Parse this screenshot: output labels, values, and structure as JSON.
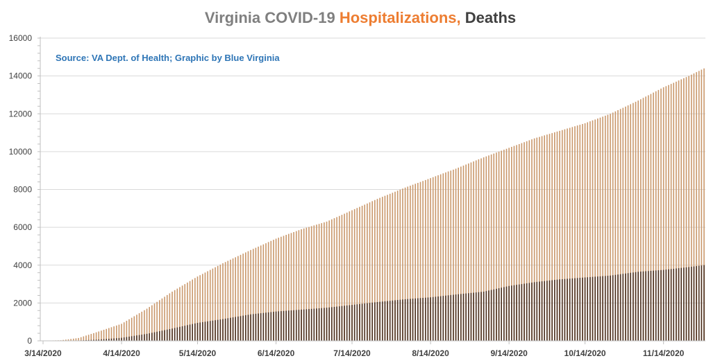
{
  "colors": {
    "title_gray": "#7f7f7f",
    "title_orange": "#ed7d31",
    "title_dark": "#404040",
    "hospitalizations": "#c9976a",
    "deaths": "#4a2f1f",
    "source": "#2e75b6",
    "grid": "#d9d9d9"
  },
  "chart_data": {
    "type": "bar",
    "title": {
      "part1": "Virginia COVID-19 ",
      "part2": "Hospitalizations,",
      "part3": " Deaths"
    },
    "annotation": "Source: VA Dept. of Health; Graphic by Blue Virginia",
    "ylim": [
      0,
      16000
    ],
    "yticks": [
      "0",
      "2000",
      "4000",
      "6000",
      "8000",
      "10000",
      "12000",
      "14000",
      "16000"
    ],
    "xtick_labels": [
      "3/14/2020",
      "4/14/2020",
      "5/14/2020",
      "6/14/2020",
      "7/14/2020",
      "8/14/2020",
      "9/14/2020",
      "10/14/2020",
      "11/14/2020"
    ],
    "start_date": "3/14/2020",
    "end_date": "11/30/2020",
    "stacked": false,
    "grid": true,
    "series": [
      {
        "name": "Hospitalizations",
        "keypoints": [
          [
            "3/14/2020",
            10
          ],
          [
            "3/21/2020",
            30
          ],
          [
            "3/28/2020",
            150
          ],
          [
            "4/4/2020",
            450
          ],
          [
            "4/14/2020",
            900
          ],
          [
            "4/24/2020",
            1700
          ],
          [
            "5/4/2020",
            2600
          ],
          [
            "5/14/2020",
            3400
          ],
          [
            "5/24/2020",
            4100
          ],
          [
            "6/4/2020",
            4800
          ],
          [
            "6/14/2020",
            5400
          ],
          [
            "6/24/2020",
            5900
          ],
          [
            "7/4/2020",
            6300
          ],
          [
            "7/14/2020",
            6900
          ],
          [
            "7/24/2020",
            7500
          ],
          [
            "8/4/2020",
            8100
          ],
          [
            "8/14/2020",
            8600
          ],
          [
            "8/24/2020",
            9100
          ],
          [
            "9/4/2020",
            9700
          ],
          [
            "9/14/2020",
            10200
          ],
          [
            "9/24/2020",
            10700
          ],
          [
            "10/4/2020",
            11100
          ],
          [
            "10/14/2020",
            11500
          ],
          [
            "10/24/2020",
            12000
          ],
          [
            "11/4/2020",
            12700
          ],
          [
            "11/14/2020",
            13400
          ],
          [
            "11/24/2020",
            14000
          ],
          [
            "11/30/2020",
            14400
          ]
        ]
      },
      {
        "name": "Deaths",
        "keypoints": [
          [
            "3/14/2020",
            0
          ],
          [
            "3/21/2020",
            5
          ],
          [
            "3/28/2020",
            20
          ],
          [
            "4/4/2020",
            60
          ],
          [
            "4/14/2020",
            160
          ],
          [
            "4/24/2020",
            370
          ],
          [
            "5/4/2020",
            650
          ],
          [
            "5/14/2020",
            950
          ],
          [
            "5/24/2020",
            1150
          ],
          [
            "6/4/2020",
            1400
          ],
          [
            "6/14/2020",
            1550
          ],
          [
            "6/24/2020",
            1650
          ],
          [
            "7/4/2020",
            1750
          ],
          [
            "7/14/2020",
            1900
          ],
          [
            "7/24/2020",
            2050
          ],
          [
            "8/4/2020",
            2200
          ],
          [
            "8/14/2020",
            2300
          ],
          [
            "8/24/2020",
            2450
          ],
          [
            "9/4/2020",
            2600
          ],
          [
            "9/14/2020",
            2900
          ],
          [
            "9/24/2020",
            3100
          ],
          [
            "10/4/2020",
            3250
          ],
          [
            "10/14/2020",
            3350
          ],
          [
            "10/24/2020",
            3450
          ],
          [
            "11/4/2020",
            3650
          ],
          [
            "11/14/2020",
            3750
          ],
          [
            "11/24/2020",
            3900
          ],
          [
            "11/30/2020",
            4000
          ]
        ]
      }
    ]
  }
}
